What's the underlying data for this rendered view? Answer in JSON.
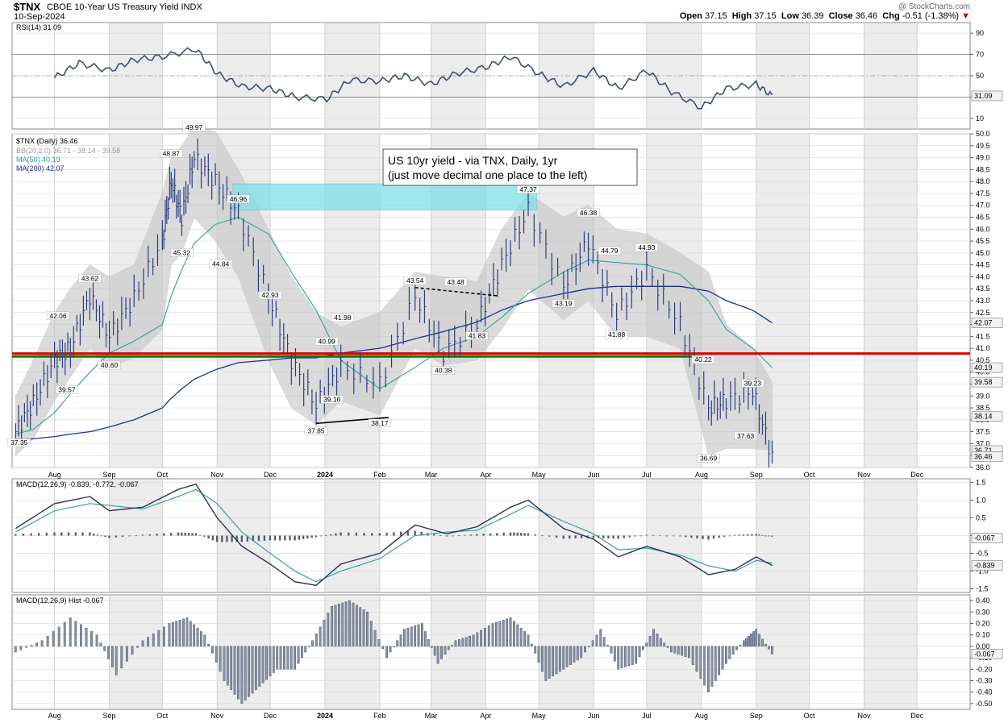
{
  "header": {
    "symbol": "$TNX",
    "name": "CBOE 10-Year US Treasury Yield INDX",
    "date": "10-Sep-2024",
    "credit": "@ StockCharts.com",
    "open_label": "Open",
    "open": "37.15",
    "high_label": "High",
    "high": "37.15",
    "low_label": "Low",
    "low": "36.39",
    "close_label": "Close",
    "close": "36.46",
    "chg_label": "Chg",
    "chg": "-0.51 (-1.38%)"
  },
  "colors": {
    "rsi": "#3f4f6f",
    "price_bar": "#2b3f80",
    "ma50": "#2aa39b",
    "ma200": "#1c2f9e",
    "bb_fill": "#c8c8c8",
    "red_line": "#e00000",
    "green_line": "#008000",
    "highlight": "#7fdfe8",
    "macd_line": "#2c3553",
    "signal_line": "#35a3a0",
    "hist": "#8a92a8"
  },
  "chart_data": [
    {
      "type": "line",
      "panel": "rsi",
      "legend": "RSI(14) 31.09",
      "yticks": [
        "90",
        "70",
        "50",
        "30",
        "10"
      ],
      "ylim": [
        0,
        100
      ],
      "last_value": "31.09",
      "x": [
        "2023-08-01",
        "2023-08-15",
        "2023-09-01",
        "2023-09-15",
        "2023-10-01",
        "2023-10-20",
        "2023-11-01",
        "2023-11-15",
        "2023-12-01",
        "2023-12-15",
        "2024-01-02",
        "2024-01-15",
        "2024-02-01",
        "2024-02-15",
        "2024-03-01",
        "2024-03-15",
        "2024-04-01",
        "2024-04-15",
        "2024-05-01",
        "2024-05-15",
        "2024-06-01",
        "2024-06-15",
        "2024-07-01",
        "2024-07-15",
        "2024-08-01",
        "2024-08-15",
        "2024-09-01",
        "2024-09-10"
      ],
      "values": [
        48,
        62,
        55,
        65,
        68,
        75,
        52,
        40,
        38,
        30,
        28,
        46,
        45,
        50,
        42,
        52,
        58,
        68,
        52,
        40,
        55,
        38,
        55,
        35,
        20,
        38,
        42,
        31
      ]
    },
    {
      "type": "line",
      "panel": "price",
      "legend": "$TNX (Daily) 36.46",
      "bb_legend": "BB(20,2.0) 36.71 - 38.14 - 39.58",
      "ma50_legend": "MA(50) 40.19",
      "ma200_legend": "MA(200) 42.07",
      "annotation": "US 10yr yield - via TNX, Daily, 1yr",
      "annotation2": "(just move decimal one place to the left)",
      "ylim": [
        36.0,
        50.0
      ],
      "yticks": [
        "50.0",
        "49.5",
        "49.0",
        "48.5",
        "48.0",
        "47.5",
        "47.0",
        "46.5",
        "46.0",
        "45.5",
        "45.0",
        "44.5",
        "44.0",
        "43.5",
        "43.0",
        "42.5",
        "42.0",
        "41.5",
        "41.0",
        "40.5",
        "40.0",
        "39.5",
        "39.0",
        "38.5",
        "38.0",
        "37.5",
        "37.0",
        "36.5",
        "36.0"
      ],
      "right_labels": [
        "42.07",
        "40.19",
        "39.58",
        "38.14",
        "36.71",
        "36.46"
      ],
      "peak_labels": [
        {
          "x": "2023-07-12",
          "y": 37.35,
          "text": "37.35",
          "pos": "below"
        },
        {
          "x": "2023-08-03",
          "y": 42.06,
          "text": "42.06",
          "pos": "above"
        },
        {
          "x": "2023-08-08",
          "y": 39.57,
          "text": "39.57",
          "pos": "below"
        },
        {
          "x": "2023-08-21",
          "y": 43.62,
          "text": "43.62",
          "pos": "above"
        },
        {
          "x": "2023-09-01",
          "y": 40.6,
          "text": "40.60",
          "pos": "below"
        },
        {
          "x": "2023-10-06",
          "y": 48.87,
          "text": "48.87",
          "pos": "above"
        },
        {
          "x": "2023-10-12",
          "y": 45.32,
          "text": "45.32",
          "pos": "below"
        },
        {
          "x": "2023-10-19",
          "y": 49.97,
          "text": "49.97",
          "pos": "above"
        },
        {
          "x": "2023-11-03",
          "y": 44.84,
          "text": "44.84",
          "pos": "below"
        },
        {
          "x": "2023-11-13",
          "y": 46.96,
          "text": "46.96",
          "pos": "above"
        },
        {
          "x": "2023-12-01",
          "y": 42.93,
          "text": "42.93",
          "pos": "above"
        },
        {
          "x": "2023-12-27",
          "y": 37.85,
          "text": "37.85",
          "pos": "below"
        },
        {
          "x": "2024-01-02",
          "y": 40.99,
          "text": "40.99",
          "pos": "above"
        },
        {
          "x": "2024-01-05",
          "y": 39.16,
          "text": "39.16",
          "pos": "below"
        },
        {
          "x": "2024-01-11",
          "y": 41.98,
          "text": "41.98",
          "pos": "above"
        },
        {
          "x": "2024-02-01",
          "y": 38.17,
          "text": "38.17",
          "pos": "below"
        },
        {
          "x": "2024-02-21",
          "y": 43.54,
          "text": "43.54",
          "pos": "above"
        },
        {
          "x": "2024-03-08",
          "y": 40.38,
          "text": "40.38",
          "pos": "below"
        },
        {
          "x": "2024-03-15",
          "y": 43.48,
          "text": "43.48",
          "pos": "above"
        },
        {
          "x": "2024-03-27",
          "y": 41.83,
          "text": "41.83",
          "pos": "below"
        },
        {
          "x": "2024-04-25",
          "y": 47.37,
          "text": "47.37",
          "pos": "above"
        },
        {
          "x": "2024-05-15",
          "y": 43.19,
          "text": "43.19",
          "pos": "below"
        },
        {
          "x": "2024-05-29",
          "y": 46.38,
          "text": "46.38",
          "pos": "above"
        },
        {
          "x": "2024-06-10",
          "y": 44.79,
          "text": "44.79",
          "pos": "above"
        },
        {
          "x": "2024-06-14",
          "y": 41.88,
          "text": "41.88",
          "pos": "below"
        },
        {
          "x": "2024-07-01",
          "y": 44.93,
          "text": "44.93",
          "pos": "above"
        },
        {
          "x": "2024-08-02",
          "y": 40.22,
          "text": "40.22",
          "pos": "above"
        },
        {
          "x": "2024-08-05",
          "y": 36.69,
          "text": "36.69",
          "pos": "below"
        },
        {
          "x": "2024-08-26",
          "y": 37.63,
          "text": "37.63",
          "pos": "below"
        },
        {
          "x": "2024-08-30",
          "y": 39.23,
          "text": "39.23",
          "pos": "above"
        }
      ],
      "close_x": [
        "2023-07-10",
        "2023-07-20",
        "2023-08-01",
        "2023-08-10",
        "2023-08-21",
        "2023-09-01",
        "2023-09-15",
        "2023-10-01",
        "2023-10-06",
        "2023-10-12",
        "2023-10-19",
        "2023-10-31",
        "2023-11-13",
        "2023-11-30",
        "2023-12-13",
        "2023-12-27",
        "2024-01-10",
        "2024-02-01",
        "2024-02-21",
        "2024-03-08",
        "2024-03-27",
        "2024-04-10",
        "2024-04-25",
        "2024-05-15",
        "2024-05-29",
        "2024-06-14",
        "2024-07-01",
        "2024-07-20",
        "2024-08-05",
        "2024-08-15",
        "2024-08-30",
        "2024-09-10"
      ],
      "close": [
        37.5,
        38.7,
        40.5,
        41.0,
        43.2,
        41.5,
        43.1,
        45.5,
        48.0,
        46.5,
        49.0,
        48.0,
        46.7,
        43.2,
        40.5,
        38.6,
        40.2,
        39.5,
        43.2,
        40.8,
        42.0,
        44.5,
        46.8,
        43.6,
        45.5,
        42.4,
        44.3,
        42.0,
        38.5,
        38.8,
        39.2,
        36.46
      ],
      "bb_upper": [
        39.0,
        40.5,
        42.5,
        43.5,
        44.5,
        44.0,
        44.5,
        47.5,
        49.0,
        49.5,
        50.3,
        50.1,
        48.5,
        46.0,
        44.0,
        42.5,
        41.9,
        42.5,
        44.2,
        44.0,
        43.8,
        46.0,
        47.5,
        46.5,
        47.0,
        46.0,
        45.8,
        45.0,
        44.2,
        42.0,
        41.0,
        39.58
      ],
      "bb_lower": [
        36.5,
        37.2,
        38.8,
        39.8,
        41.0,
        40.2,
        40.6,
        41.8,
        44.5,
        45.0,
        46.5,
        45.5,
        44.0,
        40.5,
        38.5,
        37.8,
        38.8,
        38.2,
        41.0,
        40.3,
        40.5,
        41.8,
        43.5,
        42.2,
        43.0,
        41.5,
        41.5,
        41.0,
        36.5,
        36.8,
        36.8,
        36.71
      ],
      "ma50": [
        37.4,
        37.6,
        38.3,
        39.1,
        40.0,
        40.8,
        41.3,
        42.0,
        43.2,
        44.3,
        45.4,
        46.2,
        46.5,
        45.8,
        44.2,
        42.6,
        40.5,
        39.3,
        40.2,
        41.0,
        41.5,
        42.3,
        43.3,
        44.2,
        44.7,
        44.6,
        44.5,
        44.1,
        43.0,
        41.8,
        41.0,
        40.19
      ],
      "ma200": [
        37.2,
        37.2,
        37.3,
        37.4,
        37.5,
        37.7,
        38.0,
        38.5,
        38.9,
        39.3,
        39.7,
        40.1,
        40.4,
        40.5,
        40.6,
        40.6,
        40.8,
        41.0,
        41.4,
        41.7,
        42.1,
        42.6,
        43.0,
        43.3,
        43.5,
        43.6,
        43.6,
        43.6,
        43.4,
        43.0,
        42.6,
        42.07
      ],
      "hlines": [
        {
          "y": 40.7,
          "color": "red"
        },
        {
          "y": 40.7,
          "color": "green"
        }
      ],
      "highlight_zone": {
        "x0": "2023-11-10",
        "x1": "2024-04-30",
        "y0": 46.8,
        "y1": 47.9
      },
      "trendlines": [
        {
          "x0": "2023-12-27",
          "y0": 37.85,
          "x1": "2024-02-06",
          "y1": 38.1,
          "style": "solid"
        },
        {
          "x0": "2024-02-21",
          "y0": 43.55,
          "x1": "2024-04-08",
          "y1": 43.2,
          "style": "dashed"
        }
      ]
    },
    {
      "type": "line",
      "panel": "macd",
      "legend": "MACD(12,26,9) -0.839, -0.772, -0.067",
      "yticks": [
        "1.5",
        "1.0",
        "0.5",
        "0.0",
        "-0.5",
        "-1.0",
        "-1.5"
      ],
      "ylim": [
        -1.6,
        1.6
      ],
      "right_labels": [
        "-0.067",
        "-0.839"
      ],
      "x": [
        "2023-07-10",
        "2023-08-01",
        "2023-08-21",
        "2023-09-01",
        "2023-09-20",
        "2023-10-10",
        "2023-10-20",
        "2023-11-01",
        "2023-11-15",
        "2023-12-01",
        "2023-12-15",
        "2023-12-27",
        "2024-01-10",
        "2024-02-01",
        "2024-02-21",
        "2024-03-10",
        "2024-03-27",
        "2024-04-15",
        "2024-04-25",
        "2024-05-15",
        "2024-06-01",
        "2024-06-15",
        "2024-07-01",
        "2024-07-20",
        "2024-08-05",
        "2024-08-20",
        "2024-09-01",
        "2024-09-10"
      ],
      "macd": [
        0.2,
        0.9,
        1.1,
        0.7,
        0.8,
        1.3,
        1.45,
        0.5,
        -0.3,
        -0.8,
        -1.3,
        -1.4,
        -0.8,
        -0.5,
        0.3,
        0.05,
        0.25,
        0.8,
        1.0,
        0.2,
        -0.1,
        -0.6,
        -0.3,
        -0.6,
        -1.1,
        -0.95,
        -0.6,
        -0.839
      ],
      "signal": [
        0.1,
        0.7,
        0.9,
        0.85,
        0.75,
        1.1,
        1.3,
        0.9,
        0.1,
        -0.5,
        -1.0,
        -1.3,
        -1.0,
        -0.65,
        0.0,
        0.1,
        0.15,
        0.6,
        0.85,
        0.4,
        0.05,
        -0.4,
        -0.35,
        -0.55,
        -0.85,
        -1.0,
        -0.7,
        -0.772
      ],
      "hist": [
        0.1,
        0.2,
        0.2,
        -0.15,
        0.05,
        0.2,
        0.15,
        -0.4,
        -0.4,
        -0.3,
        -0.3,
        -0.1,
        0.2,
        0.15,
        0.3,
        -0.05,
        0.1,
        0.2,
        0.15,
        -0.2,
        -0.15,
        -0.2,
        0.05,
        -0.05,
        -0.25,
        0.05,
        0.1,
        -0.067
      ]
    },
    {
      "type": "bar",
      "panel": "macd_hist",
      "legend": "MACD(12,26,9) Hist -0.067",
      "yticks": [
        "0.40",
        "0.30",
        "0.20",
        "0.10",
        "0.00",
        "-0.10",
        "-0.20",
        "-0.30",
        "-0.40",
        "-0.50"
      ],
      "ylim": [
        -0.55,
        0.45
      ],
      "right_labels": [
        "-0.067"
      ],
      "x": [
        "2023-07-10",
        "2023-07-25",
        "2023-08-10",
        "2023-08-25",
        "2023-09-05",
        "2023-09-20",
        "2023-10-05",
        "2023-10-15",
        "2023-10-25",
        "2023-11-05",
        "2023-11-15",
        "2023-11-25",
        "2023-12-05",
        "2023-12-15",
        "2023-12-25",
        "2024-01-05",
        "2024-01-15",
        "2024-01-25",
        "2024-02-05",
        "2024-02-15",
        "2024-02-25",
        "2024-03-05",
        "2024-03-15",
        "2024-03-25",
        "2024-04-05",
        "2024-04-15",
        "2024-04-25",
        "2024-05-05",
        "2024-05-15",
        "2024-05-25",
        "2024-06-05",
        "2024-06-15",
        "2024-06-25",
        "2024-07-05",
        "2024-07-15",
        "2024-07-25",
        "2024-08-05",
        "2024-08-15",
        "2024-08-25",
        "2024-09-01",
        "2024-09-10"
      ],
      "values": [
        -0.05,
        0.05,
        0.25,
        0.1,
        -0.25,
        0.05,
        0.2,
        0.25,
        0.1,
        -0.3,
        -0.5,
        -0.35,
        -0.2,
        -0.2,
        0.05,
        0.35,
        0.4,
        0.3,
        -0.1,
        0.15,
        0.2,
        -0.15,
        0.05,
        0.1,
        0.2,
        0.25,
        0.1,
        -0.3,
        -0.2,
        -0.1,
        0.15,
        -0.2,
        -0.15,
        0.15,
        -0.05,
        -0.1,
        -0.4,
        -0.15,
        0.05,
        0.15,
        -0.067
      ]
    }
  ],
  "x_axis": {
    "months": [
      {
        "x": "2023-08-01",
        "label": "Aug"
      },
      {
        "x": "2023-09-01",
        "label": "Sep"
      },
      {
        "x": "2023-10-01",
        "label": "Oct"
      },
      {
        "x": "2023-11-01",
        "label": "Nov"
      },
      {
        "x": "2023-12-01",
        "label": "Dec"
      },
      {
        "x": "2024-01-01",
        "label": "2024"
      },
      {
        "x": "2024-02-01",
        "label": "Feb"
      },
      {
        "x": "2024-03-01",
        "label": "Mar"
      },
      {
        "x": "2024-04-01",
        "label": "Apr"
      },
      {
        "x": "2024-05-01",
        "label": "May"
      },
      {
        "x": "2024-06-01",
        "label": "Jun"
      },
      {
        "x": "2024-07-01",
        "label": "Jul"
      },
      {
        "x": "2024-08-01",
        "label": "Aug"
      },
      {
        "x": "2024-09-01",
        "label": "Sep"
      },
      {
        "x": "2024-10-01",
        "label": "Oct"
      },
      {
        "x": "2024-11-01",
        "label": "Nov"
      },
      {
        "x": "2024-12-01",
        "label": "Dec"
      }
    ],
    "start": "2023-07-08",
    "end": "2024-12-31"
  }
}
